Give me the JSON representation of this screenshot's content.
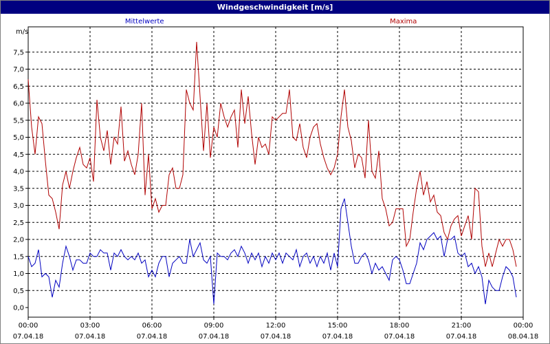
{
  "window": {
    "title": "Windgeschwindigkeit [m/s]"
  },
  "chart_data": {
    "type": "line",
    "title": "Windgeschwindigkeit [m/s]",
    "ylabel": "m/s",
    "ylim": [
      0,
      8
    ],
    "yticks": [
      "0,0",
      "0,5",
      "1,0",
      "1,5",
      "2,0",
      "2,5",
      "3,0",
      "3,5",
      "4,0",
      "4,5",
      "5,0",
      "5,5",
      "6,0",
      "6,5",
      "7,0",
      "7,5"
    ],
    "xlim": [
      "2018-04-07 00:00",
      "2018-04-08 00:00"
    ],
    "xticks": [
      {
        "time": "00:00",
        "date": "07.04.18"
      },
      {
        "time": "03:00",
        "date": "07.04.18"
      },
      {
        "time": "06:00",
        "date": "07.04.18"
      },
      {
        "time": "09:00",
        "date": "07.04.18"
      },
      {
        "time": "12:00",
        "date": "07.04.18"
      },
      {
        "time": "15:00",
        "date": "07.04.18"
      },
      {
        "time": "18:00",
        "date": "07.04.18"
      },
      {
        "time": "21:00",
        "date": "07.04.18"
      },
      {
        "time": "00:00",
        "date": "08.04.18"
      }
    ],
    "grid": true,
    "legend": "top",
    "series": [
      {
        "name": "Mittelwerte",
        "color": "#0000c0",
        "points": [
          [
            "00:00",
            1.5
          ],
          [
            "00:10",
            1.2
          ],
          [
            "00:20",
            1.3
          ],
          [
            "00:30",
            1.7
          ],
          [
            "00:40",
            0.9
          ],
          [
            "00:50",
            1.0
          ],
          [
            "01:00",
            0.9
          ],
          [
            "01:10",
            0.3
          ],
          [
            "01:20",
            0.8
          ],
          [
            "01:30",
            0.6
          ],
          [
            "01:40",
            1.3
          ],
          [
            "01:50",
            1.8
          ],
          [
            "02:00",
            1.5
          ],
          [
            "02:10",
            1.1
          ],
          [
            "02:20",
            1.4
          ],
          [
            "02:30",
            1.4
          ],
          [
            "02:40",
            1.3
          ],
          [
            "02:50",
            1.3
          ],
          [
            "03:00",
            1.6
          ],
          [
            "03:10",
            1.5
          ],
          [
            "03:20",
            1.5
          ],
          [
            "03:30",
            1.7
          ],
          [
            "03:40",
            1.6
          ],
          [
            "03:50",
            1.6
          ],
          [
            "04:00",
            1.1
          ],
          [
            "04:10",
            1.6
          ],
          [
            "04:20",
            1.5
          ],
          [
            "04:30",
            1.7
          ],
          [
            "04:40",
            1.5
          ],
          [
            "04:50",
            1.4
          ],
          [
            "05:00",
            1.5
          ],
          [
            "05:10",
            1.4
          ],
          [
            "05:20",
            1.6
          ],
          [
            "05:30",
            1.3
          ],
          [
            "05:40",
            1.4
          ],
          [
            "05:50",
            0.9
          ],
          [
            "06:00",
            1.1
          ],
          [
            "06:10",
            0.9
          ],
          [
            "06:20",
            1.3
          ],
          [
            "06:30",
            1.5
          ],
          [
            "06:40",
            1.5
          ],
          [
            "06:50",
            0.9
          ],
          [
            "07:00",
            1.3
          ],
          [
            "07:10",
            1.4
          ],
          [
            "07:20",
            1.5
          ],
          [
            "07:30",
            1.3
          ],
          [
            "07:40",
            1.3
          ],
          [
            "07:50",
            2.0
          ],
          [
            "08:00",
            1.5
          ],
          [
            "08:10",
            1.7
          ],
          [
            "08:20",
            1.9
          ],
          [
            "08:30",
            1.4
          ],
          [
            "08:40",
            1.3
          ],
          [
            "08:50",
            1.5
          ],
          [
            "09:00",
            0.1
          ],
          [
            "09:10",
            1.6
          ],
          [
            "09:20",
            1.5
          ],
          [
            "09:30",
            1.5
          ],
          [
            "09:40",
            1.4
          ],
          [
            "09:50",
            1.6
          ],
          [
            "10:00",
            1.7
          ],
          [
            "10:10",
            1.5
          ],
          [
            "10:20",
            1.8
          ],
          [
            "10:30",
            1.6
          ],
          [
            "10:40",
            1.3
          ],
          [
            "10:50",
            1.6
          ],
          [
            "11:00",
            1.4
          ],
          [
            "11:10",
            1.6
          ],
          [
            "11:20",
            1.2
          ],
          [
            "11:30",
            1.5
          ],
          [
            "11:40",
            1.3
          ],
          [
            "11:50",
            1.6
          ],
          [
            "12:00",
            1.4
          ],
          [
            "12:10",
            1.6
          ],
          [
            "12:20",
            1.3
          ],
          [
            "12:30",
            1.6
          ],
          [
            "12:40",
            1.5
          ],
          [
            "12:50",
            1.4
          ],
          [
            "13:00",
            1.7
          ],
          [
            "13:10",
            1.2
          ],
          [
            "13:20",
            1.5
          ],
          [
            "13:30",
            1.6
          ],
          [
            "13:40",
            1.3
          ],
          [
            "13:50",
            1.5
          ],
          [
            "14:00",
            1.2
          ],
          [
            "14:10",
            1.5
          ],
          [
            "14:20",
            1.3
          ],
          [
            "14:30",
            1.6
          ],
          [
            "14:40",
            1.1
          ],
          [
            "14:50",
            1.6
          ],
          [
            "15:00",
            1.2
          ],
          [
            "15:10",
            2.9
          ],
          [
            "15:20",
            3.2
          ],
          [
            "15:30",
            2.5
          ],
          [
            "15:40",
            1.8
          ],
          [
            "15:50",
            1.3
          ],
          [
            "16:00",
            1.3
          ],
          [
            "16:10",
            1.5
          ],
          [
            "16:20",
            1.6
          ],
          [
            "16:30",
            1.4
          ],
          [
            "16:40",
            1.0
          ],
          [
            "16:50",
            1.3
          ],
          [
            "17:00",
            1.1
          ],
          [
            "17:10",
            1.2
          ],
          [
            "17:20",
            1.0
          ],
          [
            "17:30",
            0.8
          ],
          [
            "17:40",
            1.4
          ],
          [
            "17:50",
            1.5
          ],
          [
            "18:00",
            1.4
          ],
          [
            "18:10",
            1.1
          ],
          [
            "18:20",
            0.7
          ],
          [
            "18:30",
            0.7
          ],
          [
            "18:40",
            1.0
          ],
          [
            "18:50",
            1.3
          ],
          [
            "19:00",
            1.9
          ],
          [
            "19:10",
            1.7
          ],
          [
            "19:20",
            2.0
          ],
          [
            "19:30",
            2.1
          ],
          [
            "19:40",
            2.2
          ],
          [
            "19:50",
            2.0
          ],
          [
            "20:00",
            2.1
          ],
          [
            "20:10",
            1.5
          ],
          [
            "20:20",
            2.0
          ],
          [
            "20:30",
            2.0
          ],
          [
            "20:40",
            2.1
          ],
          [
            "20:50",
            1.6
          ],
          [
            "21:00",
            1.5
          ],
          [
            "21:10",
            1.6
          ],
          [
            "21:20",
            1.2
          ],
          [
            "21:30",
            1.3
          ],
          [
            "21:40",
            1.0
          ],
          [
            "21:50",
            1.2
          ],
          [
            "22:00",
            0.9
          ],
          [
            "22:10",
            0.1
          ],
          [
            "22:20",
            0.8
          ],
          [
            "22:30",
            0.6
          ],
          [
            "22:40",
            0.5
          ],
          [
            "22:50",
            0.5
          ],
          [
            "23:00",
            0.9
          ],
          [
            "23:10",
            1.2
          ],
          [
            "23:20",
            1.1
          ],
          [
            "23:30",
            0.9
          ],
          [
            "23:40",
            0.3
          ]
        ]
      },
      {
        "name": "Maxima",
        "color": "#b00000",
        "points": [
          [
            "00:00",
            6.7
          ],
          [
            "00:10",
            5.3
          ],
          [
            "00:20",
            4.5
          ],
          [
            "00:30",
            5.6
          ],
          [
            "00:40",
            5.4
          ],
          [
            "00:50",
            4.3
          ],
          [
            "01:00",
            3.3
          ],
          [
            "01:10",
            3.2
          ],
          [
            "01:20",
            2.8
          ],
          [
            "01:30",
            2.3
          ],
          [
            "01:40",
            3.6
          ],
          [
            "01:50",
            4.0
          ],
          [
            "02:00",
            3.5
          ],
          [
            "02:10",
            4.0
          ],
          [
            "02:20",
            4.4
          ],
          [
            "02:30",
            4.7
          ],
          [
            "02:40",
            4.2
          ],
          [
            "02:50",
            4.1
          ],
          [
            "03:00",
            4.4
          ],
          [
            "03:10",
            3.7
          ],
          [
            "03:20",
            6.1
          ],
          [
            "03:30",
            5.0
          ],
          [
            "03:40",
            4.6
          ],
          [
            "03:50",
            5.2
          ],
          [
            "04:00",
            4.2
          ],
          [
            "04:10",
            5.0
          ],
          [
            "04:20",
            4.8
          ],
          [
            "04:30",
            5.9
          ],
          [
            "04:40",
            4.3
          ],
          [
            "04:50",
            4.6
          ],
          [
            "05:00",
            4.2
          ],
          [
            "05:10",
            3.9
          ],
          [
            "05:20",
            4.5
          ],
          [
            "05:30",
            6.0
          ],
          [
            "05:40",
            3.3
          ],
          [
            "05:50",
            4.5
          ],
          [
            "06:00",
            2.9
          ],
          [
            "06:10",
            3.2
          ],
          [
            "06:20",
            2.8
          ],
          [
            "06:30",
            3.0
          ],
          [
            "06:40",
            3.0
          ],
          [
            "06:50",
            3.9
          ],
          [
            "07:00",
            4.1
          ],
          [
            "07:10",
            3.5
          ],
          [
            "07:20",
            3.5
          ],
          [
            "07:30",
            3.9
          ],
          [
            "07:40",
            6.4
          ],
          [
            "07:50",
            6.0
          ],
          [
            "08:00",
            5.8
          ],
          [
            "08:10",
            7.8
          ],
          [
            "08:20",
            6.2
          ],
          [
            "08:30",
            4.6
          ],
          [
            "08:40",
            6.0
          ],
          [
            "08:50",
            4.4
          ],
          [
            "09:00",
            5.3
          ],
          [
            "09:10",
            5.0
          ],
          [
            "09:20",
            6.0
          ],
          [
            "09:30",
            5.6
          ],
          [
            "09:40",
            5.3
          ],
          [
            "09:50",
            5.6
          ],
          [
            "10:00",
            5.8
          ],
          [
            "10:10",
            4.7
          ],
          [
            "10:20",
            6.4
          ],
          [
            "10:30",
            5.4
          ],
          [
            "10:40",
            6.2
          ],
          [
            "10:50",
            5.1
          ],
          [
            "11:00",
            4.2
          ],
          [
            "11:10",
            5.0
          ],
          [
            "11:20",
            4.7
          ],
          [
            "11:30",
            4.8
          ],
          [
            "11:40",
            4.5
          ],
          [
            "11:50",
            5.6
          ],
          [
            "12:00",
            5.5
          ],
          [
            "12:10",
            5.6
          ],
          [
            "12:20",
            5.7
          ],
          [
            "12:30",
            5.7
          ],
          [
            "12:40",
            6.4
          ],
          [
            "12:50",
            5.0
          ],
          [
            "13:00",
            4.9
          ],
          [
            "13:10",
            5.4
          ],
          [
            "13:20",
            4.7
          ],
          [
            "13:30",
            4.4
          ],
          [
            "13:40",
            5.0
          ],
          [
            "13:50",
            5.3
          ],
          [
            "14:00",
            5.4
          ],
          [
            "14:10",
            4.8
          ],
          [
            "14:20",
            4.4
          ],
          [
            "14:30",
            4.1
          ],
          [
            "14:40",
            3.9
          ],
          [
            "14:50",
            4.1
          ],
          [
            "15:00",
            4.5
          ],
          [
            "15:10",
            5.6
          ],
          [
            "15:20",
            6.4
          ],
          [
            "15:30",
            5.3
          ],
          [
            "15:40",
            4.9
          ],
          [
            "15:50",
            4.1
          ],
          [
            "16:00",
            4.5
          ],
          [
            "16:10",
            4.4
          ],
          [
            "16:20",
            3.8
          ],
          [
            "16:30",
            5.5
          ],
          [
            "16:40",
            4.0
          ],
          [
            "16:50",
            3.8
          ],
          [
            "17:00",
            4.6
          ],
          [
            "17:10",
            3.2
          ],
          [
            "17:20",
            2.9
          ],
          [
            "17:30",
            2.4
          ],
          [
            "17:40",
            2.5
          ],
          [
            "17:50",
            2.9
          ],
          [
            "18:00",
            2.9
          ],
          [
            "18:10",
            2.9
          ],
          [
            "18:20",
            1.8
          ],
          [
            "18:30",
            2.0
          ],
          [
            "18:40",
            2.8
          ],
          [
            "18:50",
            3.5
          ],
          [
            "19:00",
            4.0
          ],
          [
            "19:10",
            3.3
          ],
          [
            "19:20",
            3.7
          ],
          [
            "19:30",
            3.1
          ],
          [
            "19:40",
            3.3
          ],
          [
            "19:50",
            2.8
          ],
          [
            "20:00",
            2.7
          ],
          [
            "20:10",
            2.2
          ],
          [
            "20:20",
            2.0
          ],
          [
            "20:30",
            2.4
          ],
          [
            "20:40",
            2.6
          ],
          [
            "20:50",
            2.7
          ],
          [
            "21:00",
            2.1
          ],
          [
            "21:10",
            2.4
          ],
          [
            "21:20",
            2.7
          ],
          [
            "21:30",
            2.0
          ],
          [
            "21:40",
            3.5
          ],
          [
            "21:50",
            3.4
          ],
          [
            "22:00",
            1.8
          ],
          [
            "22:10",
            1.2
          ],
          [
            "22:20",
            1.6
          ],
          [
            "22:30",
            1.2
          ],
          [
            "22:40",
            1.6
          ],
          [
            "22:50",
            2.0
          ],
          [
            "23:00",
            1.8
          ],
          [
            "23:10",
            2.0
          ],
          [
            "23:20",
            2.0
          ],
          [
            "23:30",
            1.7
          ],
          [
            "23:40",
            1.2
          ]
        ]
      }
    ]
  }
}
